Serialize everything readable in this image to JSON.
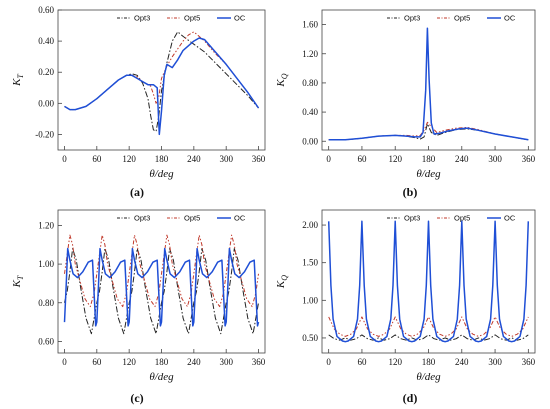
{
  "colors": {
    "Opt3": "#222222",
    "Opt5": "#c0392b",
    "OC": "#1f4fd6"
  },
  "chart_data": [
    {
      "type": "line",
      "caption": "(a)",
      "xlabel": "θ/deg",
      "ylabel": "K_T",
      "xlim": [
        -12,
        372
      ],
      "ylim": [
        -0.3,
        0.6
      ],
      "xticks": [
        "0",
        "60",
        "120",
        "180",
        "240",
        "300",
        "360"
      ],
      "yticks": [
        "-0.20",
        "0.00",
        "0.20",
        "0.40",
        "0.60"
      ],
      "legend": "top-right",
      "series": [
        {
          "name": "Opt3",
          "x": [
            0,
            10,
            20,
            40,
            60,
            80,
            100,
            115,
            125,
            135,
            145,
            155,
            160,
            165,
            170,
            175,
            180,
            190,
            200,
            210,
            220,
            240,
            260,
            280,
            300,
            320,
            340,
            360
          ],
          "y": [
            -0.02,
            -0.04,
            -0.04,
            -0.02,
            0.03,
            0.09,
            0.15,
            0.18,
            0.19,
            0.18,
            0.13,
            0.03,
            -0.08,
            -0.17,
            -0.18,
            -0.08,
            0.08,
            0.26,
            0.4,
            0.46,
            0.43,
            0.38,
            0.33,
            0.26,
            0.19,
            0.12,
            0.05,
            -0.03
          ]
        },
        {
          "name": "Opt5",
          "x": [
            0,
            10,
            20,
            40,
            60,
            80,
            100,
            115,
            125,
            135,
            145,
            155,
            160,
            165,
            170,
            175,
            180,
            190,
            200,
            210,
            220,
            230,
            240,
            260,
            280,
            300,
            320,
            340,
            360
          ],
          "y": [
            -0.02,
            -0.04,
            -0.04,
            -0.02,
            0.03,
            0.09,
            0.15,
            0.18,
            0.18,
            0.17,
            0.14,
            0.12,
            0.11,
            0.06,
            0.0,
            0.04,
            0.16,
            0.24,
            0.3,
            0.35,
            0.4,
            0.44,
            0.46,
            0.4,
            0.32,
            0.25,
            0.16,
            0.07,
            -0.03
          ]
        },
        {
          "name": "OC",
          "x": [
            0,
            10,
            20,
            40,
            60,
            80,
            100,
            115,
            125,
            135,
            145,
            155,
            165,
            172,
            176,
            180,
            185,
            190,
            200,
            210,
            220,
            240,
            250,
            260,
            280,
            300,
            320,
            340,
            360
          ],
          "y": [
            -0.02,
            -0.04,
            -0.04,
            -0.02,
            0.03,
            0.09,
            0.15,
            0.18,
            0.18,
            0.16,
            0.14,
            0.12,
            0.12,
            0.1,
            -0.2,
            -0.05,
            0.18,
            0.25,
            0.23,
            0.28,
            0.34,
            0.4,
            0.42,
            0.41,
            0.33,
            0.25,
            0.16,
            0.07,
            -0.03
          ]
        }
      ]
    },
    {
      "type": "line",
      "caption": "(b)",
      "xlabel": "θ/deg",
      "ylabel": "K_Q",
      "xlim": [
        -12,
        372
      ],
      "ylim": [
        -0.12,
        1.8
      ],
      "xticks": [
        "0",
        "60",
        "120",
        "180",
        "240",
        "300",
        "360"
      ],
      "yticks": [
        "0.00",
        "0.40",
        "0.80",
        "1.20",
        "1.60"
      ],
      "legend": "top-right",
      "series": [
        {
          "name": "Opt3",
          "x": [
            0,
            30,
            60,
            90,
            120,
            140,
            155,
            165,
            172,
            178,
            185,
            195,
            210,
            230,
            250,
            270,
            300,
            330,
            360
          ],
          "y": [
            0.02,
            0.02,
            0.04,
            0.07,
            0.08,
            0.07,
            0.05,
            0.03,
            0.06,
            0.24,
            0.12,
            0.08,
            0.12,
            0.16,
            0.17,
            0.15,
            0.1,
            0.06,
            0.02
          ]
        },
        {
          "name": "Opt5",
          "x": [
            0,
            30,
            60,
            90,
            120,
            140,
            155,
            165,
            172,
            178,
            185,
            195,
            210,
            230,
            250,
            270,
            300,
            330,
            360
          ],
          "y": [
            0.02,
            0.02,
            0.04,
            0.07,
            0.08,
            0.08,
            0.07,
            0.08,
            0.15,
            0.26,
            0.2,
            0.12,
            0.15,
            0.18,
            0.19,
            0.16,
            0.1,
            0.06,
            0.02
          ]
        },
        {
          "name": "OC",
          "x": [
            0,
            30,
            60,
            90,
            120,
            140,
            155,
            165,
            170,
            175,
            178,
            181,
            185,
            190,
            200,
            215,
            235,
            250,
            270,
            300,
            330,
            360
          ],
          "y": [
            0.02,
            0.02,
            0.04,
            0.07,
            0.08,
            0.07,
            0.06,
            0.06,
            0.12,
            0.7,
            1.55,
            0.85,
            0.25,
            0.1,
            0.11,
            0.14,
            0.17,
            0.18,
            0.15,
            0.1,
            0.06,
            0.02
          ]
        }
      ]
    },
    {
      "type": "line",
      "caption": "(c)",
      "xlabel": "θ/deg",
      "ylabel": "K_T",
      "xlim": [
        -12,
        372
      ],
      "ylim": [
        0.54,
        1.28
      ],
      "xticks": [
        "0",
        "60",
        "120",
        "180",
        "240",
        "300",
        "360"
      ],
      "yticks": [
        "0.60",
        "0.80",
        "1.00",
        "1.20"
      ],
      "legend": "top-right",
      "series": [
        {
          "name": "Opt3",
          "x": [
            0,
            5,
            10,
            15,
            22,
            30,
            40,
            50,
            60,
            65,
            70,
            75,
            82,
            90,
            100,
            110,
            120,
            125,
            130,
            135,
            142,
            150,
            160,
            170,
            180,
            185,
            190,
            195,
            202,
            210,
            220,
            230,
            240,
            245,
            250,
            255,
            262,
            270,
            280,
            290,
            300,
            305,
            310,
            315,
            322,
            330,
            340,
            350,
            360
          ],
          "y": [
            0.8,
            0.86,
            0.96,
            1.08,
            1.02,
            0.88,
            0.72,
            0.64,
            0.8,
            0.86,
            0.96,
            1.08,
            1.02,
            0.88,
            0.72,
            0.64,
            0.8,
            0.86,
            0.96,
            1.08,
            1.02,
            0.88,
            0.72,
            0.64,
            0.8,
            0.86,
            0.96,
            1.08,
            1.02,
            0.88,
            0.72,
            0.64,
            0.8,
            0.86,
            0.96,
            1.08,
            1.02,
            0.88,
            0.72,
            0.64,
            0.8,
            0.86,
            0.96,
            1.08,
            1.02,
            0.88,
            0.72,
            0.64,
            0.8
          ]
        },
        {
          "name": "Opt5",
          "x": [
            0,
            5,
            10,
            15,
            20,
            28,
            38,
            48,
            55,
            60,
            65,
            70,
            75,
            80,
            88,
            98,
            108,
            115,
            120,
            125,
            130,
            135,
            140,
            148,
            158,
            168,
            175,
            180,
            185,
            190,
            195,
            200,
            208,
            218,
            228,
            235,
            240,
            245,
            250,
            255,
            260,
            268,
            278,
            288,
            295,
            300,
            305,
            310,
            315,
            320,
            328,
            338,
            348,
            355,
            360
          ],
          "y": [
            0.95,
            1.05,
            1.15,
            1.1,
            1.0,
            0.92,
            0.82,
            0.78,
            0.85,
            0.95,
            1.05,
            1.15,
            1.1,
            1.0,
            0.92,
            0.82,
            0.78,
            0.85,
            0.95,
            1.05,
            1.15,
            1.1,
            1.0,
            0.92,
            0.82,
            0.78,
            0.85,
            0.95,
            1.05,
            1.15,
            1.1,
            1.0,
            0.92,
            0.82,
            0.78,
            0.85,
            0.95,
            1.05,
            1.15,
            1.1,
            1.0,
            0.92,
            0.82,
            0.78,
            0.85,
            0.95,
            1.05,
            1.15,
            1.1,
            1.0,
            0.92,
            0.82,
            0.78,
            0.85,
            0.95
          ]
        },
        {
          "name": "OC",
          "x": [
            0,
            3,
            6,
            10,
            16,
            24,
            34,
            44,
            52,
            58,
            60,
            63,
            66,
            70,
            76,
            84,
            94,
            104,
            112,
            118,
            120,
            123,
            126,
            130,
            136,
            144,
            154,
            164,
            172,
            178,
            180,
            183,
            186,
            190,
            196,
            204,
            214,
            224,
            232,
            238,
            240,
            243,
            246,
            250,
            256,
            264,
            274,
            284,
            292,
            298,
            300,
            303,
            306,
            310,
            316,
            324,
            334,
            344,
            352,
            358,
            360
          ],
          "y": [
            0.7,
            0.88,
            1.08,
            1.02,
            0.95,
            0.93,
            0.96,
            1.01,
            1.02,
            0.68,
            0.7,
            0.88,
            1.08,
            1.02,
            0.95,
            0.93,
            0.96,
            1.01,
            1.02,
            0.68,
            0.7,
            0.88,
            1.08,
            1.02,
            0.95,
            0.93,
            0.96,
            1.01,
            1.02,
            0.68,
            0.7,
            0.88,
            1.08,
            1.02,
            0.95,
            0.93,
            0.96,
            1.01,
            1.02,
            0.68,
            0.7,
            0.88,
            1.08,
            1.02,
            0.95,
            0.93,
            0.96,
            1.01,
            1.02,
            0.68,
            0.7,
            0.88,
            1.08,
            1.02,
            0.95,
            0.93,
            0.96,
            1.01,
            1.02,
            0.68,
            0.7
          ]
        }
      ]
    },
    {
      "type": "line",
      "caption": "(d)",
      "xlabel": "θ/deg",
      "ylabel": "K_Q",
      "xlim": [
        -12,
        372
      ],
      "ylim": [
        0.3,
        2.2
      ],
      "xticks": [
        "0",
        "60",
        "120",
        "180",
        "240",
        "300",
        "360"
      ],
      "yticks": [
        "0.50",
        "1.00",
        "1.50",
        "2.00"
      ],
      "legend": "top-right",
      "series": [
        {
          "name": "Opt3",
          "x": [
            0,
            10,
            20,
            30,
            40,
            50,
            60,
            70,
            80,
            90,
            100,
            110,
            120,
            130,
            140,
            150,
            160,
            170,
            180,
            190,
            200,
            210,
            220,
            230,
            240,
            250,
            260,
            270,
            280,
            290,
            300,
            310,
            320,
            330,
            340,
            350,
            360
          ],
          "y": [
            0.54,
            0.49,
            0.47,
            0.5,
            0.47,
            0.49,
            0.54,
            0.49,
            0.47,
            0.5,
            0.47,
            0.49,
            0.54,
            0.49,
            0.47,
            0.5,
            0.47,
            0.49,
            0.54,
            0.49,
            0.47,
            0.5,
            0.47,
            0.49,
            0.54,
            0.49,
            0.47,
            0.5,
            0.47,
            0.49,
            0.54,
            0.49,
            0.47,
            0.5,
            0.47,
            0.49,
            0.54
          ]
        },
        {
          "name": "Opt5",
          "x": [
            0,
            10,
            20,
            30,
            40,
            50,
            60,
            70,
            80,
            90,
            100,
            110,
            120,
            130,
            140,
            150,
            160,
            170,
            180,
            190,
            200,
            210,
            220,
            230,
            240,
            250,
            260,
            270,
            280,
            290,
            300,
            310,
            320,
            330,
            340,
            350,
            360
          ],
          "y": [
            0.78,
            0.62,
            0.55,
            0.52,
            0.55,
            0.62,
            0.78,
            0.62,
            0.55,
            0.52,
            0.55,
            0.62,
            0.78,
            0.62,
            0.55,
            0.52,
            0.55,
            0.62,
            0.78,
            0.62,
            0.55,
            0.52,
            0.55,
            0.62,
            0.78,
            0.62,
            0.55,
            0.52,
            0.55,
            0.62,
            0.78,
            0.62,
            0.55,
            0.52,
            0.55,
            0.62,
            0.78
          ]
        },
        {
          "name": "OC",
          "x": [
            0,
            4,
            8,
            15,
            25,
            30,
            35,
            45,
            52,
            56,
            60,
            64,
            68,
            75,
            85,
            90,
            95,
            105,
            112,
            116,
            120,
            124,
            128,
            135,
            145,
            150,
            155,
            165,
            172,
            176,
            180,
            184,
            188,
            195,
            205,
            210,
            215,
            225,
            232,
            236,
            240,
            244,
            248,
            255,
            265,
            270,
            275,
            285,
            292,
            296,
            300,
            304,
            308,
            315,
            325,
            330,
            335,
            345,
            352,
            356,
            360
          ],
          "y": [
            2.05,
            1.2,
            0.75,
            0.52,
            0.46,
            0.45,
            0.46,
            0.52,
            0.75,
            1.2,
            2.05,
            1.2,
            0.75,
            0.52,
            0.46,
            0.45,
            0.46,
            0.52,
            0.75,
            1.2,
            2.05,
            1.2,
            0.75,
            0.52,
            0.46,
            0.45,
            0.46,
            0.52,
            0.75,
            1.2,
            2.05,
            1.2,
            0.75,
            0.52,
            0.46,
            0.45,
            0.46,
            0.52,
            0.75,
            1.2,
            2.05,
            1.2,
            0.75,
            0.52,
            0.46,
            0.45,
            0.46,
            0.52,
            0.75,
            1.2,
            2.05,
            1.2,
            0.75,
            0.52,
            0.46,
            0.45,
            0.46,
            0.52,
            0.75,
            1.2,
            2.05
          ]
        }
      ]
    }
  ]
}
